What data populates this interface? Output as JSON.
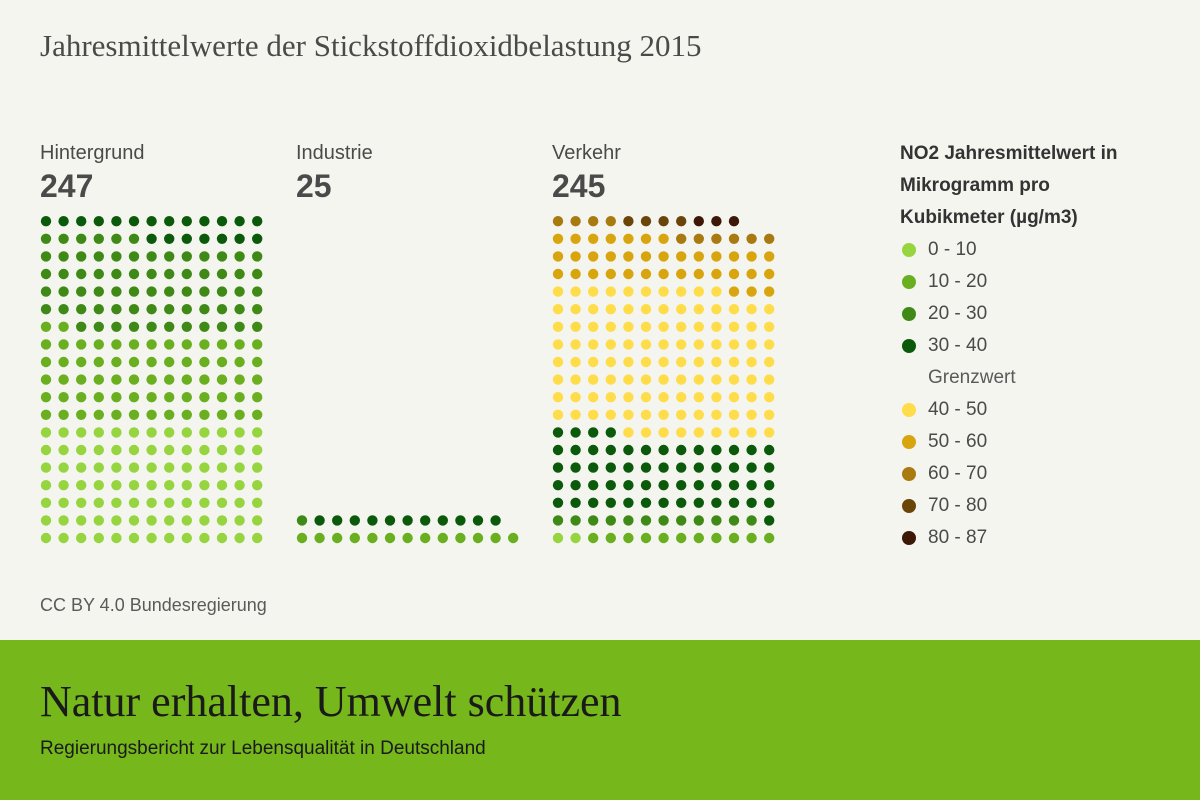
{
  "title": "Jahresmittelwerte der Stickstoffdioxidbelastung 2015",
  "source": "CC BY 4.0 Bundesregierung",
  "footer": {
    "title": "Natur erhalten, Umwelt schützen",
    "subtitle": "Regierungsbericht zur Lebensqualität in Deutschland"
  },
  "legend": {
    "title_lines": [
      "NO2 Jahresmittelwert in",
      "Mikrogramm pro",
      "Kubikmeter (µg/m3)"
    ],
    "items": [
      {
        "label": "0 - 10",
        "color": "#96d53f"
      },
      {
        "label": "10 - 20",
        "color": "#6aaf1f"
      },
      {
        "label": "20 - 30",
        "color": "#3f8a17"
      },
      {
        "label": "30 - 40",
        "color": "#0b5a0b"
      },
      {
        "label": "40 - 50",
        "color": "#ffdc4a"
      },
      {
        "label": "50 - 60",
        "color": "#d9a50e"
      },
      {
        "label": "60 - 70",
        "color": "#a87a10"
      },
      {
        "label": "70 - 80",
        "color": "#6b4508"
      },
      {
        "label": "80 - 87",
        "color": "#3d1807"
      }
    ],
    "threshold_label": "Grenzwert"
  },
  "chart_data": {
    "type": "dot-matrix",
    "title": "Jahresmittelwerte der Stickstoffdioxidbelastung 2015",
    "bins": [
      "0 - 10",
      "10 - 20",
      "20 - 30",
      "30 - 40",
      "40 - 50",
      "50 - 60",
      "60 - 70",
      "70 - 80",
      "80 - 87"
    ],
    "threshold": {
      "label": "Grenzwert",
      "value": 40
    },
    "groups": [
      {
        "name": "Hintergrund",
        "total": 247,
        "counts": [
          91,
          67,
          69,
          20,
          0,
          0,
          0,
          0,
          0
        ]
      },
      {
        "name": "Industrie",
        "total": 25,
        "counts": [
          0,
          13,
          1,
          11,
          0,
          0,
          0,
          0,
          0
        ]
      },
      {
        "name": "Verkehr",
        "total": 245,
        "counts": [
          2,
          11,
          12,
          57,
          110,
          36,
          10,
          4,
          3
        ]
      }
    ]
  }
}
